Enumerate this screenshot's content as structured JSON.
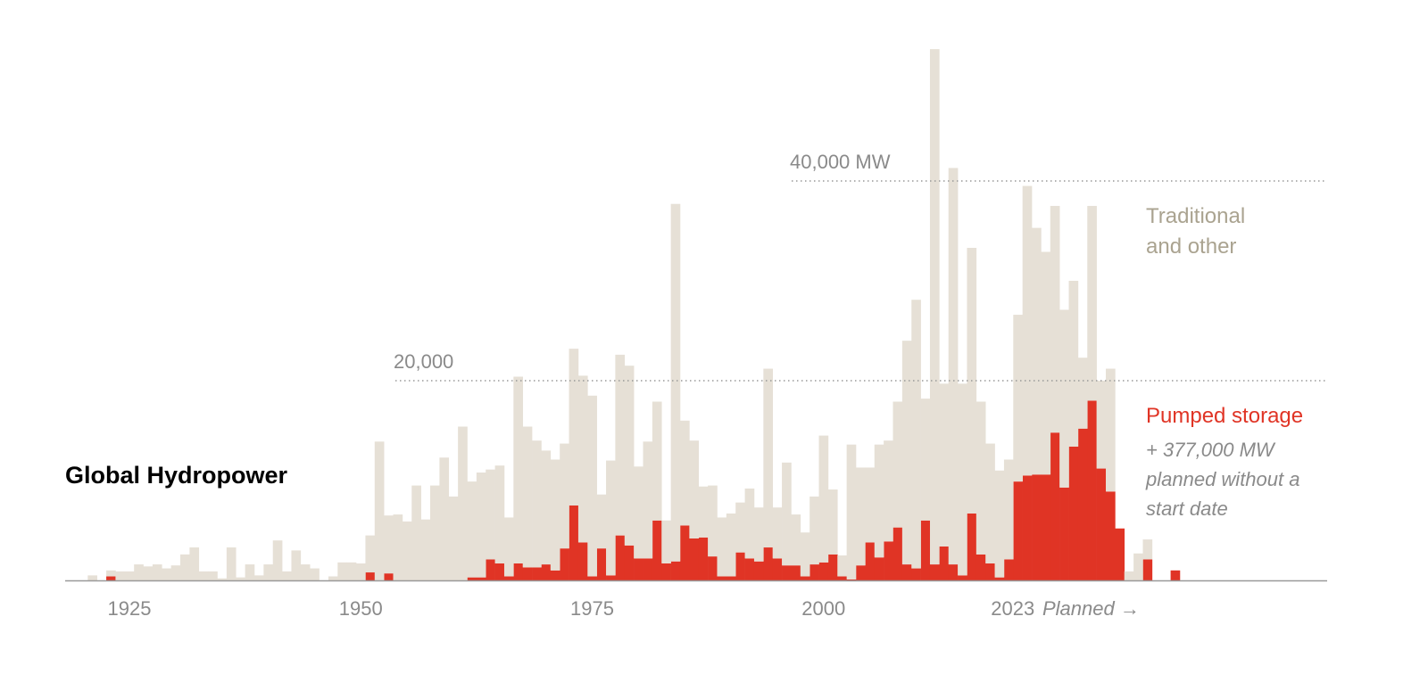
{
  "chart_data": {
    "type": "bar",
    "stacked": true,
    "title": "Global Hydropower",
    "annotation": "Planned →",
    "note": "+ 377,000 MW planned without a start date",
    "x": [
      1920,
      1921,
      1922,
      1923,
      1924,
      1925,
      1926,
      1927,
      1928,
      1929,
      1930,
      1931,
      1932,
      1933,
      1934,
      1935,
      1936,
      1937,
      1938,
      1939,
      1940,
      1941,
      1942,
      1943,
      1944,
      1945,
      1946,
      1947,
      1948,
      1949,
      1950,
      1951,
      1952,
      1953,
      1954,
      1955,
      1956,
      1957,
      1958,
      1959,
      1960,
      1961,
      1962,
      1963,
      1964,
      1965,
      1966,
      1967,
      1968,
      1969,
      1970,
      1971,
      1972,
      1973,
      1974,
      1975,
      1976,
      1977,
      1978,
      1979,
      1980,
      1981,
      1982,
      1983,
      1984,
      1985,
      1986,
      1987,
      1988,
      1989,
      1990,
      1991,
      1992,
      1993,
      1994,
      1995,
      1996,
      1997,
      1998,
      1999,
      2000,
      2001,
      2002,
      2003,
      2004,
      2005,
      2006,
      2007,
      2008,
      2009,
      2010,
      2011,
      2012,
      2013,
      2014,
      2015,
      2016,
      2017,
      2018,
      2019,
      2020,
      2021,
      2022,
      2023,
      2024,
      2025,
      2026,
      2027,
      2028,
      2029,
      2030,
      2031,
      2032,
      2033,
      2034,
      2035,
      2036,
      2037,
      2038
    ],
    "series": [
      {
        "name": "Pumped storage",
        "color": "#e03425",
        "values": [
          0,
          0,
          0,
          400,
          0,
          0,
          0,
          0,
          0,
          0,
          0,
          0,
          0,
          0,
          0,
          0,
          0,
          0,
          0,
          0,
          0,
          0,
          0,
          0,
          0,
          0,
          0,
          0,
          0,
          0,
          0,
          800,
          0,
          700,
          0,
          0,
          0,
          0,
          0,
          0,
          0,
          0,
          300,
          300,
          2100,
          1700,
          400,
          1700,
          1300,
          1300,
          1600,
          1000,
          3200,
          7500,
          3800,
          400,
          3200,
          500,
          4500,
          3500,
          2200,
          2200,
          6000,
          1700,
          1900,
          5500,
          4200,
          4300,
          2400,
          400,
          400,
          2800,
          2200,
          1900,
          3300,
          2200,
          1500,
          1500,
          400,
          1600,
          1800,
          2600,
          400,
          100,
          1500,
          3800,
          2300,
          3900,
          5300,
          1600,
          1200,
          6000,
          1600,
          3400,
          1600,
          500,
          6700,
          2600,
          1700,
          300,
          2100,
          9900,
          10500,
          10600,
          10600,
          14800,
          9300,
          13400,
          15200,
          18000,
          11200,
          8900,
          5200,
          0,
          0,
          2100,
          0,
          0,
          1000
        ]
      },
      {
        "name": "Traditional and other",
        "color": "#e6e0d6",
        "values": [
          0,
          500,
          0,
          600,
          900,
          900,
          1600,
          1400,
          1600,
          1200,
          1500,
          2600,
          3300,
          900,
          900,
          200,
          3300,
          300,
          1600,
          500,
          1600,
          4000,
          900,
          3000,
          1600,
          1200,
          0,
          400,
          1800,
          1800,
          1700,
          3700,
          13900,
          5800,
          6600,
          5900,
          9500,
          6100,
          9500,
          12300,
          8400,
          15400,
          9600,
          10500,
          9000,
          9800,
          5900,
          18700,
          14100,
          12700,
          11400,
          11100,
          10500,
          15700,
          16700,
          18100,
          5400,
          11500,
          18100,
          18000,
          9200,
          11700,
          11900,
          4300,
          35800,
          10500,
          9800,
          5100,
          7100,
          5900,
          6300,
          5000,
          7000,
          5400,
          17900,
          5100,
          10300,
          5100,
          4400,
          6800,
          12700,
          6500,
          2100,
          13500,
          9800,
          7500,
          11300,
          10100,
          12600,
          22400,
          26900,
          12200,
          51600,
          16300,
          39700,
          19200,
          26600,
          15300,
          12000,
          10700,
          10000,
          16700,
          29000,
          24700,
          22300,
          22700,
          17800,
          16600,
          7100,
          19500,
          8800,
          12300,
          0,
          900,
          2700,
          2000,
          0,
          0,
          0
        ]
      }
    ],
    "xlim": [
      1918,
      2054
    ],
    "xticks": [
      1925,
      1950,
      1975,
      2000,
      2023
    ],
    "ylim": [
      0,
      53300
    ],
    "yticks": [
      {
        "value": 20000,
        "label": "20,000"
      },
      {
        "value": 40000,
        "label": "40,000 MW"
      }
    ],
    "grid": true
  }
}
